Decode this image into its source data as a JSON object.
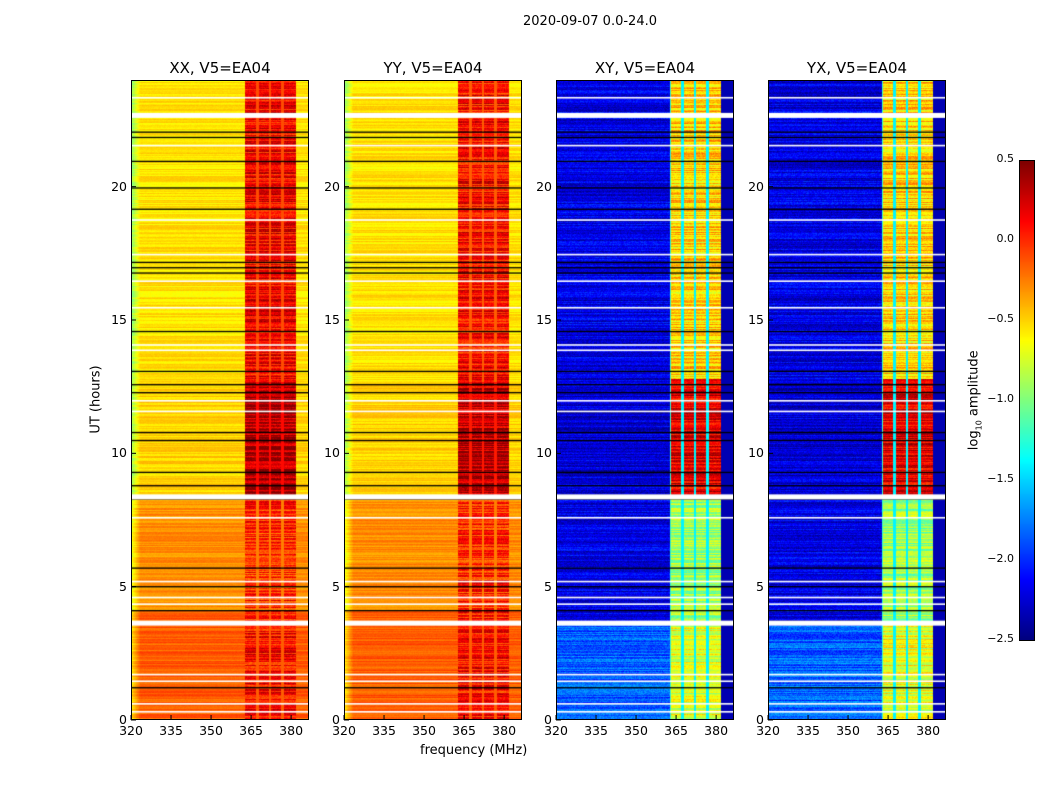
{
  "figure_title": "2020-09-07 0.0-24.0",
  "chart_data": {
    "type": "heatmap",
    "title": "2020-09-07 0.0-24.0",
    "xlabel": "frequency (MHz)",
    "ylabel": "UT (hours)",
    "xlim": [
      320,
      386.7
    ],
    "ylim": [
      0,
      24
    ],
    "xticks": [
      320,
      335,
      350,
      365,
      380
    ],
    "yticks": [
      0,
      5,
      10,
      15,
      20
    ],
    "colorbar": {
      "label_main": "log",
      "label_sub": "10",
      "label_rest": " amplitude",
      "colormap": "jet",
      "range": [
        -2.5,
        0.5
      ],
      "ticks": [
        "0.5",
        "0.0",
        "−0.5",
        "−1.0",
        "−1.5",
        "−2.0",
        "−2.5"
      ],
      "tick_values": [
        0.5,
        0.0,
        -0.5,
        -1.0,
        -1.5,
        -2.0,
        -2.5
      ]
    },
    "band_mhz": [
      362.6,
      382.0
    ],
    "band_gaps_mhz": [
      367.4,
      372.2,
      376.9
    ],
    "flagged_white_hours": [
      0.3,
      0.6,
      1.45,
      1.7,
      3.7,
      4.35,
      4.6,
      5.2,
      7.6,
      8.45,
      11.6,
      12.0,
      13.9,
      14.1,
      15.5,
      16.5,
      17.5,
      18.8,
      21.6,
      22.8,
      23.4
    ],
    "scan_boundary_hours": [
      1.2,
      4.1,
      5.0,
      5.7,
      8.3,
      8.8,
      9.3,
      10.5,
      10.8,
      12.3,
      12.6,
      13.1,
      14.6,
      16.8,
      17.0,
      17.2,
      19.2,
      20.0,
      21.0,
      21.9,
      22.1
    ],
    "panels": [
      {
        "title": "XX, V5=EA04",
        "segments": [
          {
            "from": 0,
            "to": 4.1,
            "low": -0.15,
            "band": 0.1
          },
          {
            "from": 4.1,
            "to": 8.4,
            "low": -0.3,
            "band": 0.0
          },
          {
            "from": 8.4,
            "to": 12.7,
            "low": -0.5,
            "band": 0.35
          },
          {
            "from": 12.7,
            "to": 24,
            "low": -0.55,
            "band": 0.15
          }
        ]
      },
      {
        "title": "YY, V5=EA04",
        "segments": [
          {
            "from": 0,
            "to": 4.1,
            "low": -0.15,
            "band": 0.1
          },
          {
            "from": 4.1,
            "to": 8.4,
            "low": -0.3,
            "band": 0.0
          },
          {
            "from": 8.4,
            "to": 12.7,
            "low": -0.5,
            "band": 0.3
          },
          {
            "from": 12.7,
            "to": 24,
            "low": -0.55,
            "band": 0.1
          }
        ]
      },
      {
        "title": "XY, V5=EA04",
        "segments": [
          {
            "from": 0,
            "to": 3.6,
            "low": -1.85,
            "band": -0.7
          },
          {
            "from": 3.6,
            "to": 8.4,
            "low": -2.2,
            "band": -0.9
          },
          {
            "from": 8.4,
            "to": 12.8,
            "low": -2.25,
            "band": 0.2
          },
          {
            "from": 12.8,
            "to": 24,
            "low": -2.2,
            "band": -0.5
          }
        ]
      },
      {
        "title": "YX, V5=EA04",
        "segments": [
          {
            "from": 0,
            "to": 3.6,
            "low": -1.85,
            "band": -0.7
          },
          {
            "from": 3.6,
            "to": 8.4,
            "low": -2.2,
            "band": -0.9
          },
          {
            "from": 8.4,
            "to": 12.8,
            "low": -2.25,
            "band": 0.2
          },
          {
            "from": 12.8,
            "to": 24,
            "low": -2.2,
            "band": -0.5
          }
        ]
      }
    ]
  }
}
